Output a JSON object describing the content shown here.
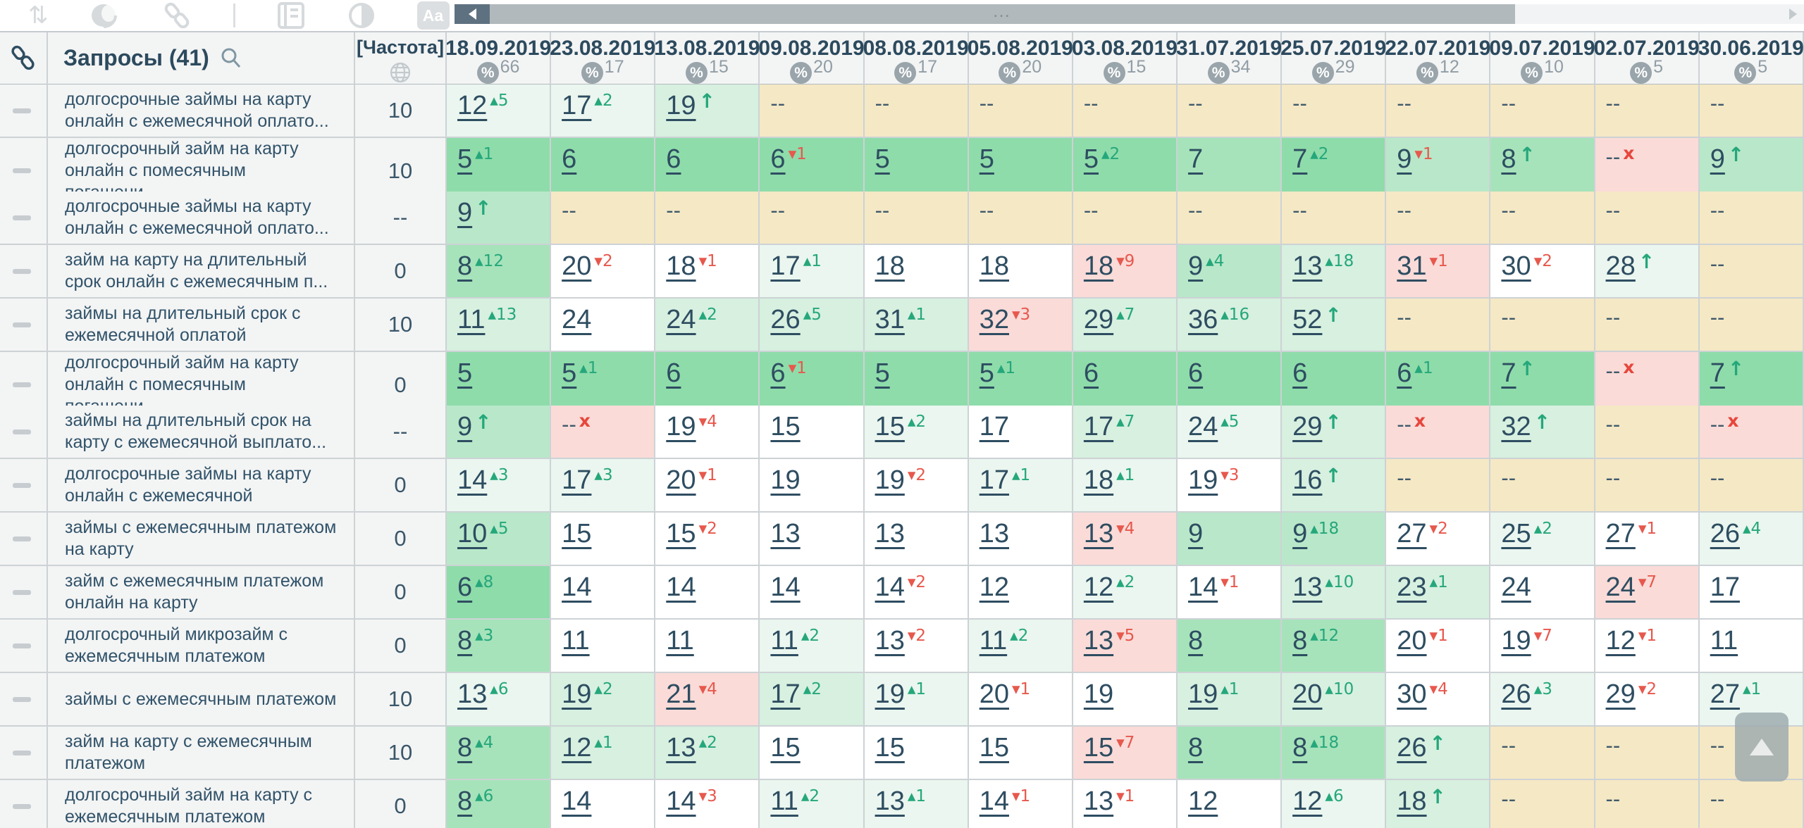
{
  "toolbar": {
    "icons": [
      "sort-icon",
      "sphere-icon",
      "link-icon",
      "divider",
      "snippet-icon",
      "contrast-icon",
      "text-case-icon"
    ],
    "sort_glyph": "⇅",
    "text_case_label": "Aa"
  },
  "scroll": {
    "dots": "…"
  },
  "header": {
    "queries_label": "Запросы",
    "queries_count": "(41)",
    "frequency_label": "[Частота]"
  },
  "colors": {
    "g1": "#8edcaa",
    "g2": "#a6e3ba",
    "g3": "#b8e8c9",
    "g4": "#d7f0e0",
    "g5": "#eaf6ef",
    "w": "#ffffff",
    "b": "#f5e8c5",
    "p": "#fadbd8",
    "accent_green": "#25a77b",
    "accent_red": "#e7584d"
  },
  "columns": [
    {
      "date": "18.09.2019",
      "percent": "66"
    },
    {
      "date": "23.08.2019",
      "percent": "17"
    },
    {
      "date": "13.08.2019",
      "percent": "15"
    },
    {
      "date": "09.08.2019",
      "percent": "20"
    },
    {
      "date": "08.08.2019",
      "percent": "17"
    },
    {
      "date": "05.08.2019",
      "percent": "20"
    },
    {
      "date": "03.08.2019",
      "percent": "15"
    },
    {
      "date": "31.07.2019",
      "percent": "34"
    },
    {
      "date": "25.07.2019",
      "percent": "29"
    },
    {
      "date": "22.07.2019",
      "percent": "12"
    },
    {
      "date": "09.07.2019",
      "percent": "10"
    },
    {
      "date": "02.07.2019",
      "percent": "5"
    },
    {
      "date": "30.06.2019",
      "percent": "5"
    }
  ],
  "rows": [
    {
      "keyword": "долгосрочные займы на карту онлайн с ежемесячной оплато...",
      "frequency": "10",
      "cells": [
        [
          "12",
          "+5",
          "g5"
        ],
        [
          "17",
          "+2",
          "g5"
        ],
        [
          "19",
          "^",
          "g4"
        ],
        [
          "--",
          "",
          "b"
        ],
        [
          "--",
          "",
          "b"
        ],
        [
          "--",
          "",
          "b"
        ],
        [
          "--",
          "",
          "b"
        ],
        [
          "--",
          "",
          "b"
        ],
        [
          "--",
          "",
          "b"
        ],
        [
          "--",
          "",
          "b"
        ],
        [
          "--",
          "",
          "b"
        ],
        [
          "--",
          "",
          "b"
        ],
        [
          "--",
          "",
          "b"
        ]
      ]
    },
    {
      "keyword": "долгосрочный займ на карту онлайн с помесячным погашени...",
      "frequency": "10",
      "cells": [
        [
          "5",
          "+1",
          "g1"
        ],
        [
          "6",
          "",
          "g1"
        ],
        [
          "6",
          "",
          "g1"
        ],
        [
          "6",
          "-1",
          "g1"
        ],
        [
          "5",
          "",
          "g1"
        ],
        [
          "5",
          "",
          "g1"
        ],
        [
          "5",
          "+2",
          "g1"
        ],
        [
          "7",
          "",
          "g2"
        ],
        [
          "7",
          "+2",
          "g1"
        ],
        [
          "9",
          "-1",
          "g3"
        ],
        [
          "8",
          "^",
          "g2"
        ],
        [
          "--",
          "x",
          "p"
        ],
        [
          "9",
          "^",
          "g3"
        ]
      ]
    },
    {
      "keyword": "долгосрочные займы на карту онлайн с ежемесячной оплато...",
      "frequency": "--",
      "cells": [
        [
          "9",
          "^",
          "g3"
        ],
        [
          "--",
          "",
          "b"
        ],
        [
          "--",
          "",
          "b"
        ],
        [
          "--",
          "",
          "b"
        ],
        [
          "--",
          "",
          "b"
        ],
        [
          "--",
          "",
          "b"
        ],
        [
          "--",
          "",
          "b"
        ],
        [
          "--",
          "",
          "b"
        ],
        [
          "--",
          "",
          "b"
        ],
        [
          "--",
          "",
          "b"
        ],
        [
          "--",
          "",
          "b"
        ],
        [
          "--",
          "",
          "b"
        ],
        [
          "--",
          "",
          "b"
        ]
      ]
    },
    {
      "keyword": "займ на карту на длительный срок онлайн с ежемесячным п...",
      "frequency": "0",
      "cells": [
        [
          "8",
          "+12",
          "g2"
        ],
        [
          "20",
          "-2",
          "w"
        ],
        [
          "18",
          "-1",
          "w"
        ],
        [
          "17",
          "+1",
          "g5"
        ],
        [
          "18",
          "",
          "w"
        ],
        [
          "18",
          "",
          "w"
        ],
        [
          "18",
          "-9",
          "p"
        ],
        [
          "9",
          "+4",
          "g3"
        ],
        [
          "13",
          "+18",
          "g4"
        ],
        [
          "31",
          "-1",
          "p"
        ],
        [
          "30",
          "-2",
          "w"
        ],
        [
          "28",
          "^",
          "g5"
        ],
        [
          "--",
          "",
          "b"
        ]
      ]
    },
    {
      "keyword": "займы на длительный срок с ежемесячной оплатой",
      "frequency": "10",
      "cells": [
        [
          "11",
          "+13",
          "g4"
        ],
        [
          "24",
          "",
          "w"
        ],
        [
          "24",
          "+2",
          "g4"
        ],
        [
          "26",
          "+5",
          "g4"
        ],
        [
          "31",
          "+1",
          "g4"
        ],
        [
          "32",
          "-3",
          "p"
        ],
        [
          "29",
          "+7",
          "g4"
        ],
        [
          "36",
          "+16",
          "g4"
        ],
        [
          "52",
          "^",
          "g4"
        ],
        [
          "--",
          "",
          "b"
        ],
        [
          "--",
          "",
          "b"
        ],
        [
          "--",
          "",
          "b"
        ],
        [
          "--",
          "",
          "b"
        ]
      ]
    },
    {
      "keyword": "долгосрочный займ на карту онлайн с помесячным погашени...",
      "frequency": "0",
      "cells": [
        [
          "5",
          "",
          "g1"
        ],
        [
          "5",
          "+1",
          "g1"
        ],
        [
          "6",
          "",
          "g1"
        ],
        [
          "6",
          "-1",
          "g1"
        ],
        [
          "5",
          "",
          "g1"
        ],
        [
          "5",
          "+1",
          "g1"
        ],
        [
          "6",
          "",
          "g1"
        ],
        [
          "6",
          "",
          "g1"
        ],
        [
          "6",
          "",
          "g1"
        ],
        [
          "6",
          "+1",
          "g1"
        ],
        [
          "7",
          "^",
          "g1"
        ],
        [
          "--",
          "x",
          "p"
        ],
        [
          "7",
          "^",
          "g1"
        ]
      ]
    },
    {
      "keyword": "займы на длительный срок на карту с ежемесячной выплато...",
      "frequency": "--",
      "cells": [
        [
          "9",
          "^",
          "g3"
        ],
        [
          "--",
          "x",
          "p"
        ],
        [
          "19",
          "-4",
          "w"
        ],
        [
          "15",
          "",
          "w"
        ],
        [
          "15",
          "+2",
          "g5"
        ],
        [
          "17",
          "",
          "w"
        ],
        [
          "17",
          "+7",
          "g4"
        ],
        [
          "24",
          "+5",
          "g5"
        ],
        [
          "29",
          "^",
          "g4"
        ],
        [
          "--",
          "x",
          "p"
        ],
        [
          "32",
          "^",
          "g4"
        ],
        [
          "--",
          "",
          "b"
        ],
        [
          "--",
          "x",
          "p"
        ]
      ]
    },
    {
      "keyword": "долгосрочные займы на карту онлайн с ежемесячной",
      "frequency": "0",
      "cells": [
        [
          "14",
          "+3",
          "g5"
        ],
        [
          "17",
          "+3",
          "g5"
        ],
        [
          "20",
          "-1",
          "w"
        ],
        [
          "19",
          "",
          "w"
        ],
        [
          "19",
          "-2",
          "w"
        ],
        [
          "17",
          "+1",
          "g5"
        ],
        [
          "18",
          "+1",
          "g5"
        ],
        [
          "19",
          "-3",
          "w"
        ],
        [
          "16",
          "^",
          "g4"
        ],
        [
          "--",
          "",
          "b"
        ],
        [
          "--",
          "",
          "b"
        ],
        [
          "--",
          "",
          "b"
        ],
        [
          "--",
          "",
          "b"
        ]
      ]
    },
    {
      "keyword": "займы с ежемесячным платежом на карту",
      "frequency": "0",
      "cells": [
        [
          "10",
          "+5",
          "g3"
        ],
        [
          "15",
          "",
          "w"
        ],
        [
          "15",
          "-2",
          "w"
        ],
        [
          "13",
          "",
          "w"
        ],
        [
          "13",
          "",
          "w"
        ],
        [
          "13",
          "",
          "w"
        ],
        [
          "13",
          "-4",
          "p"
        ],
        [
          "9",
          "",
          "g3"
        ],
        [
          "9",
          "+18",
          "g3"
        ],
        [
          "27",
          "-2",
          "w"
        ],
        [
          "25",
          "+2",
          "g5"
        ],
        [
          "27",
          "-1",
          "w"
        ],
        [
          "26",
          "+4",
          "g5"
        ]
      ]
    },
    {
      "keyword": "займ с ежемесячным платежом онлайн на карту",
      "frequency": "0",
      "cells": [
        [
          "6",
          "+8",
          "g1"
        ],
        [
          "14",
          "",
          "w"
        ],
        [
          "14",
          "",
          "w"
        ],
        [
          "14",
          "",
          "w"
        ],
        [
          "14",
          "-2",
          "w"
        ],
        [
          "12",
          "",
          "w"
        ],
        [
          "12",
          "+2",
          "g5"
        ],
        [
          "14",
          "-1",
          "w"
        ],
        [
          "13",
          "+10",
          "g4"
        ],
        [
          "23",
          "+1",
          "g4"
        ],
        [
          "24",
          "",
          "w"
        ],
        [
          "24",
          "-7",
          "p"
        ],
        [
          "17",
          "",
          "w"
        ]
      ]
    },
    {
      "keyword": "долгосрочный микрозайм с ежемесячным платежом",
      "frequency": "0",
      "cells": [
        [
          "8",
          "+3",
          "g2"
        ],
        [
          "11",
          "",
          "w"
        ],
        [
          "11",
          "",
          "w"
        ],
        [
          "11",
          "+2",
          "g5"
        ],
        [
          "13",
          "-2",
          "w"
        ],
        [
          "11",
          "+2",
          "g5"
        ],
        [
          "13",
          "-5",
          "p"
        ],
        [
          "8",
          "",
          "g2"
        ],
        [
          "8",
          "+12",
          "g2"
        ],
        [
          "20",
          "-1",
          "w"
        ],
        [
          "19",
          "-7",
          "w"
        ],
        [
          "12",
          "-1",
          "w"
        ],
        [
          "11",
          "",
          "w"
        ]
      ]
    },
    {
      "keyword": "займы с ежемесячным платежом",
      "frequency": "10",
      "cells": [
        [
          "13",
          "+6",
          "g5"
        ],
        [
          "19",
          "+2",
          "g4"
        ],
        [
          "21",
          "-4",
          "p"
        ],
        [
          "17",
          "+2",
          "g4"
        ],
        [
          "19",
          "+1",
          "g5"
        ],
        [
          "20",
          "-1",
          "w"
        ],
        [
          "19",
          "",
          "w"
        ],
        [
          "19",
          "+1",
          "g4"
        ],
        [
          "20",
          "+10",
          "g4"
        ],
        [
          "30",
          "-4",
          "w"
        ],
        [
          "26",
          "+3",
          "g5"
        ],
        [
          "29",
          "-2",
          "w"
        ],
        [
          "27",
          "+1",
          "g5"
        ]
      ]
    },
    {
      "keyword": "займ на карту с ежемесячным платежом",
      "frequency": "10",
      "cells": [
        [
          "8",
          "+4",
          "g2"
        ],
        [
          "12",
          "+1",
          "g4"
        ],
        [
          "13",
          "+2",
          "g4"
        ],
        [
          "15",
          "",
          "w"
        ],
        [
          "15",
          "",
          "w"
        ],
        [
          "15",
          "",
          "w"
        ],
        [
          "15",
          "-7",
          "p"
        ],
        [
          "8",
          "",
          "g2"
        ],
        [
          "8",
          "+18",
          "g2"
        ],
        [
          "26",
          "^",
          "g4"
        ],
        [
          "--",
          "",
          "b"
        ],
        [
          "--",
          "",
          "b"
        ],
        [
          "--",
          "",
          "b"
        ]
      ]
    },
    {
      "keyword": "долгосрочный займ на карту с ежемесячным платежом",
      "frequency": "0",
      "cells": [
        [
          "8",
          "+6",
          "g2"
        ],
        [
          "14",
          "",
          "w"
        ],
        [
          "14",
          "-3",
          "w"
        ],
        [
          "11",
          "+2",
          "g5"
        ],
        [
          "13",
          "+1",
          "g5"
        ],
        [
          "14",
          "-1",
          "w"
        ],
        [
          "13",
          "-1",
          "w"
        ],
        [
          "12",
          "",
          "w"
        ],
        [
          "12",
          "+6",
          "g5"
        ],
        [
          "18",
          "^",
          "g4"
        ],
        [
          "--",
          "",
          "b"
        ],
        [
          "--",
          "",
          "b"
        ],
        [
          "--",
          "",
          "b"
        ]
      ]
    }
  ]
}
